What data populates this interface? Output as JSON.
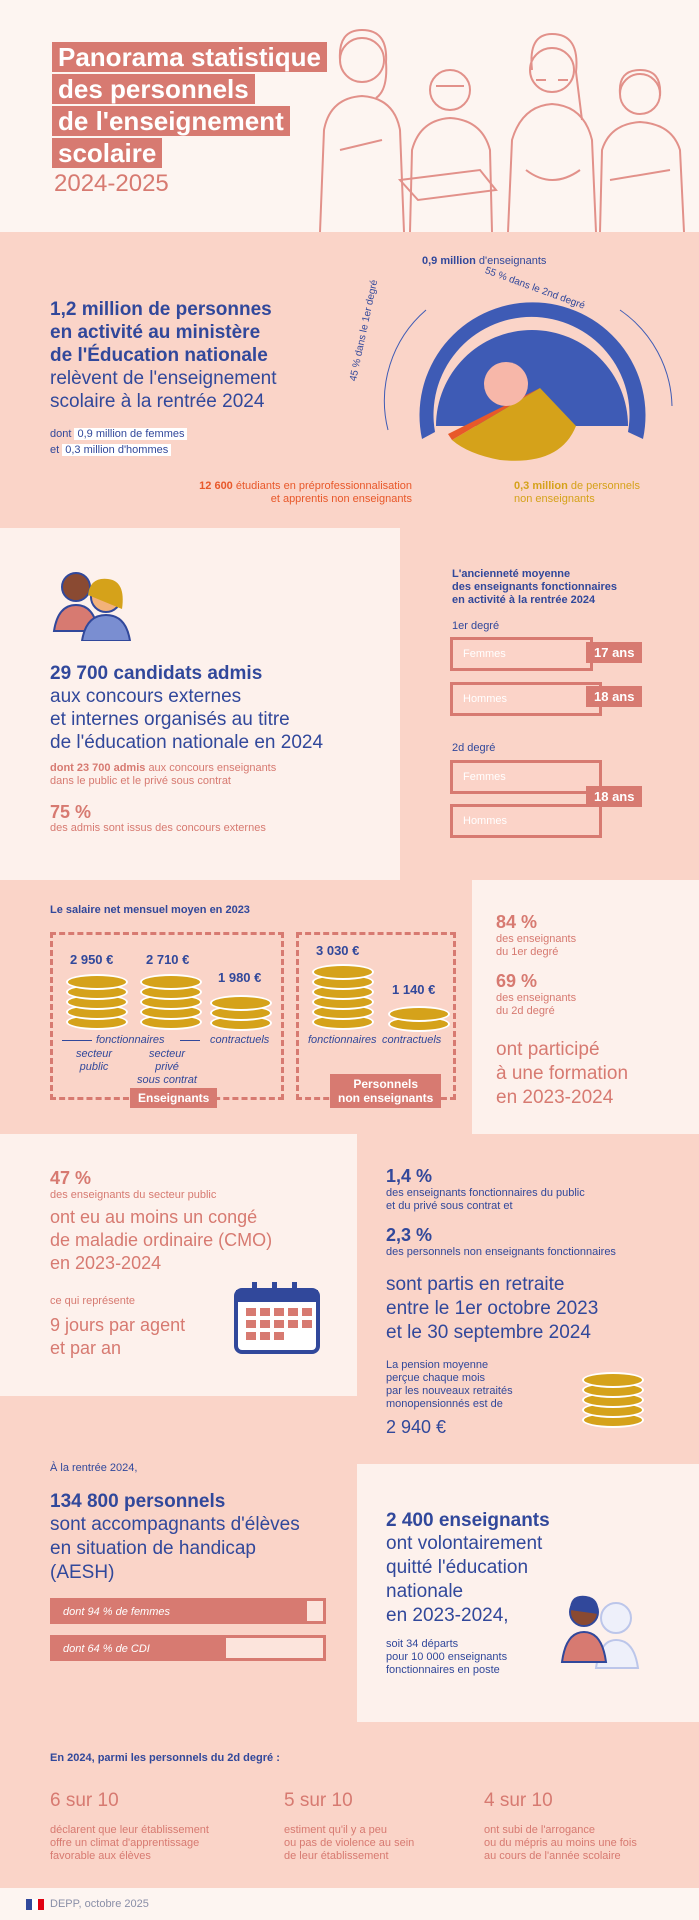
{
  "header": {
    "title_lines": [
      "Panorama statistique",
      "des personnels",
      "de l'enseignement",
      "scolaire"
    ],
    "year": "2024-2025"
  },
  "section1": {
    "headline_bold": "1,2 million de personnes",
    "headline_bold2": "en activité au ministère",
    "headline_bold3": "de l'Éducation nationale",
    "headline_rest1": "relèvent de l'enseignement",
    "headline_rest2": "scolaire à la rentrée 2024",
    "dont_label": "dont",
    "women": "0,9 million de femmes",
    "et_label": "et",
    "men": "0,3 million d'hommes",
    "teachers_value": "0,9 million",
    "teachers_label": "d'enseignants",
    "second_degree": "55 % dans le 2nd degré",
    "first_degree": "45 % dans le 1er degré",
    "students_value": "12 600",
    "students_label1": "étudiants en préprofessionnalisation",
    "students_label2": "et apprentis non enseignants",
    "nonteach_value": "0,3 million",
    "nonteach_label1": "de personnels",
    "nonteach_label2": "non enseignants",
    "colors": {
      "teachers": "#3e5bb5",
      "nonteaching": "#d5a21a",
      "students": "#e8582a",
      "center": "#f7b7a9"
    }
  },
  "section2": {
    "candidates_bold": "29 700 candidats admis",
    "candidates_l1": "aux concours externes",
    "candidates_l2": "et internes organisés au titre",
    "candidates_l3": "de l'éducation nationale en 2024",
    "dont_bold": "dont 23 700 admis",
    "dont_rest1": "aux concours enseignants",
    "dont_rest2": "dans le public et le privé sous contrat",
    "pct": "75 %",
    "pct_label": "des admis sont issus des concours externes"
  },
  "seniority": {
    "title1": "L'ancienneté moyenne",
    "title2": "des enseignants fonctionnaires",
    "title3": "en activité à la rentrée 2024",
    "degree1": "1er degré",
    "degree2": "2d degré",
    "women": "Femmes",
    "men": "Hommes",
    "d1_women": "17 ans",
    "d1_men": "18 ans",
    "d2_both": "18 ans",
    "d1_women_years": 17,
    "d1_men_years": 18,
    "d2_women_years": 18,
    "d2_men_years": 18
  },
  "salary": {
    "title": "Le salaire net mensuel moyen en 2023",
    "v1": "2 950 €",
    "v2": "2 710 €",
    "v3": "1 980 €",
    "v4": "3 030 €",
    "v5": "1 140 €",
    "fonctionnaires": "fonctionnaires",
    "contractuels": "contractuels",
    "public1": "secteur",
    "public2": "public",
    "prive1": "secteur",
    "prive2": "privé",
    "prive3": "sous contrat",
    "fonctionnaires2": "fonctionnaires",
    "contractuels2": "contractuels",
    "tag_teachers": "Enseignants",
    "tag_nonteach1": "Personnels",
    "tag_nonteach2": "non enseignants"
  },
  "training": {
    "p1": "84 %",
    "p1_l1": "des enseignants",
    "p1_l2": "du 1er degré",
    "p2": "69 %",
    "p2_l1": "des enseignants",
    "p2_l2": "du 2d degré",
    "l1": "ont participé",
    "l2": "à une formation",
    "l3": "en 2023-2024"
  },
  "sick": {
    "pct": "47 %",
    "pct_label": "des enseignants du secteur public",
    "l1": "ont eu au moins un congé",
    "l2": "de maladie ordinaire (CMO)",
    "l3": "en 2023-2024",
    "represents": "ce qui représente",
    "days1": "9 jours par agent",
    "days2": "et par an"
  },
  "retirement": {
    "p1": "1,4 %",
    "p1_l1": "des enseignants fonctionnaires du public",
    "p1_l2": "et du privé sous contrat et",
    "p2": "2,3 %",
    "p2_l1": "des personnels non enseignants fonctionnaires",
    "l1": "sont partis en retraite",
    "l2": "entre le 1er octobre 2023",
    "l3": "et le 30 septembre 2024",
    "pension1": "La pension moyenne",
    "pension2": "perçue chaque mois",
    "pension3": "par les nouveaux retraités",
    "pension4": "monopensionnés est de",
    "pension_value": "2 940 €"
  },
  "aesh": {
    "intro": "À la rentrée 2024,",
    "bold": "134 800 personnels",
    "l1": "sont accompagnants d'élèves",
    "l2": "en situation de handicap",
    "l3": "(AESH)",
    "women": "dont 94 % de femmes",
    "cdi": "dont 64 % de CDI",
    "women_pct": 94,
    "cdi_pct": 64
  },
  "quit": {
    "bold": "2 400 enseignants",
    "l1": "ont volontairement",
    "l2": "quitté l'éducation",
    "l3": "nationale",
    "l4": "en 2023-2024,",
    "s1": "soit 34 départs",
    "s2": "pour 10 000 enseignants",
    "s3": "fonctionnaires en poste"
  },
  "climate": {
    "title": "En 2024, parmi les personnels du 2d degré :",
    "c1": "6 sur 10",
    "c1_l1": "déclarent que leur établissement",
    "c1_l2": "offre un climat d'apprentissage",
    "c1_l3": "favorable aux élèves",
    "c2": "5 sur 10",
    "c2_l1": "estiment qu'il y a peu",
    "c2_l2": "ou pas de violence au sein",
    "c2_l3": "de leur établissement",
    "c3": "4 sur 10",
    "c3_l1": "ont subi de l'arrogance",
    "c3_l2": "ou du mépris au moins une fois",
    "c3_l3": "au cours de l'année scolaire"
  },
  "footer": {
    "source": "DEPP, octobre 2025"
  }
}
